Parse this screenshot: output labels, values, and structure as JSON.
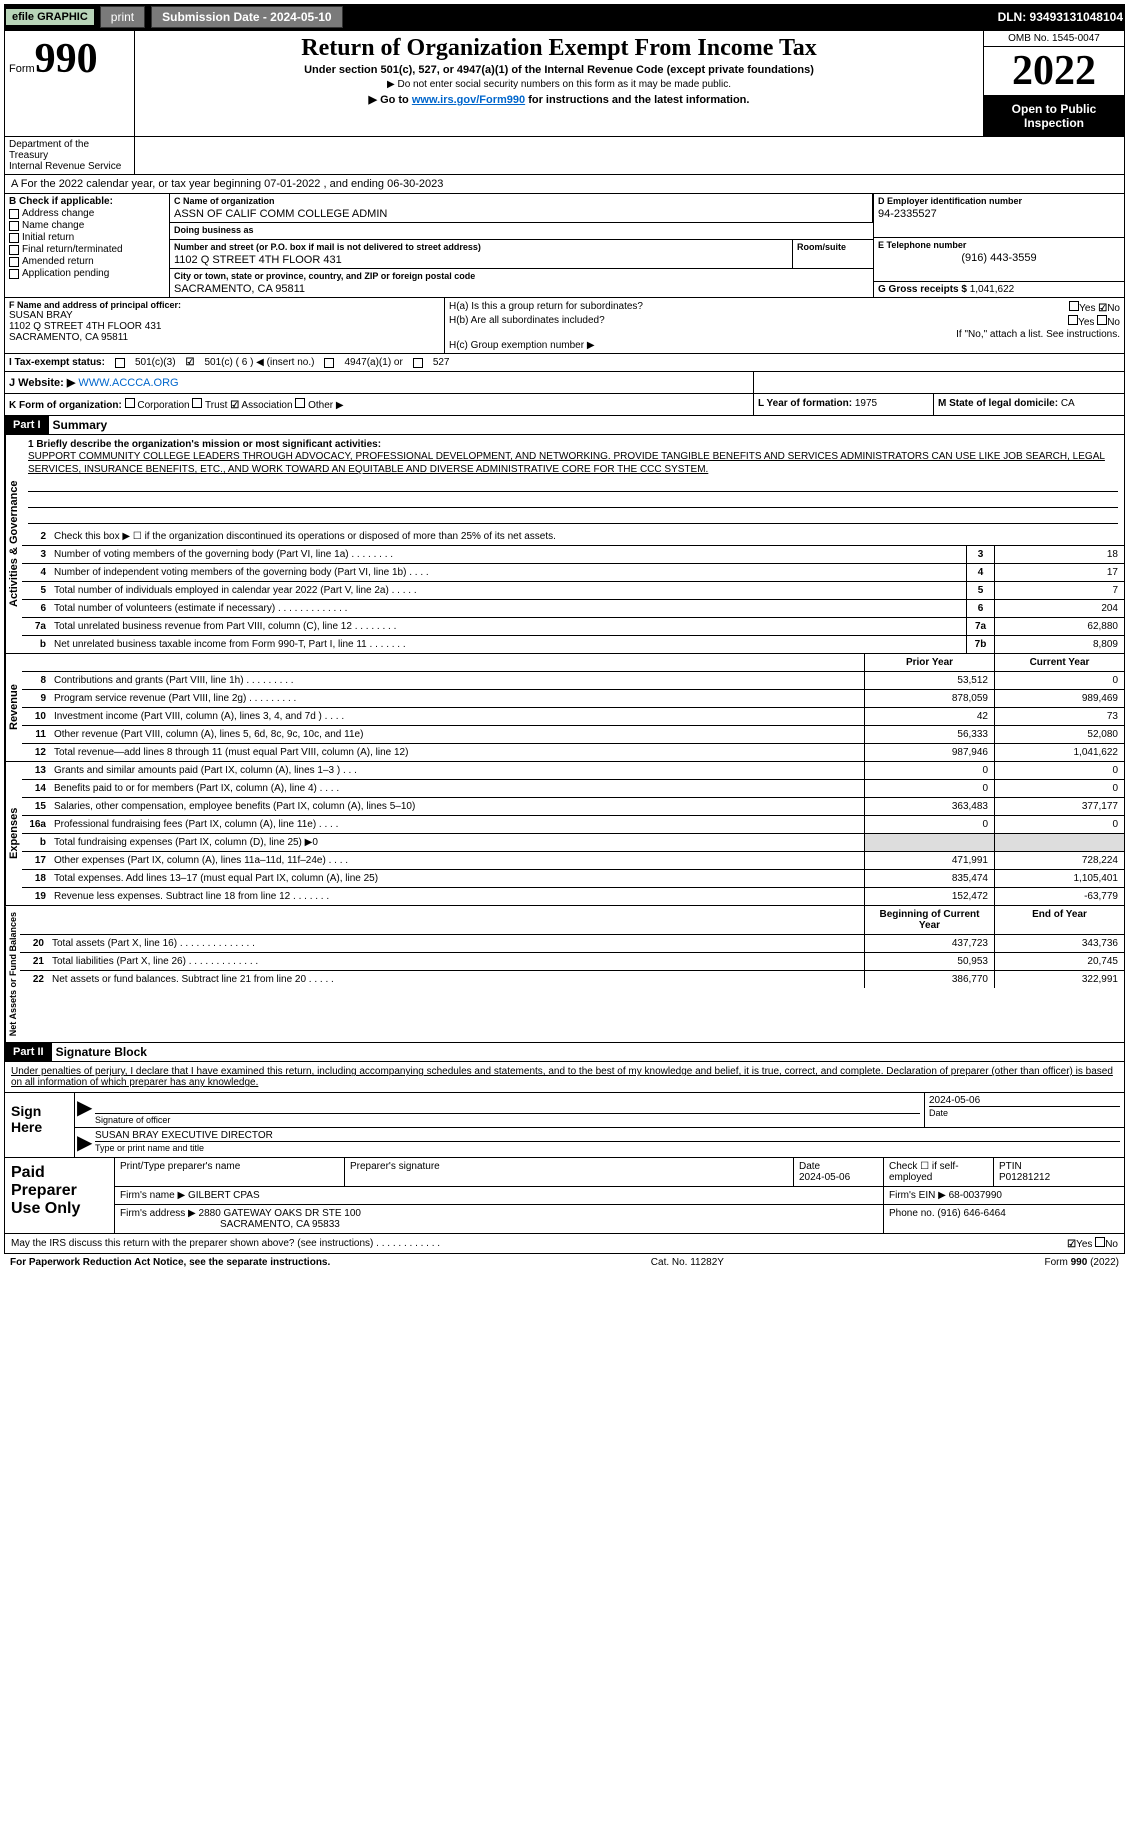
{
  "topbar": {
    "efile": "efile GRAPHIC",
    "print": "print",
    "sub_label": "Submission Date - 2024-05-10",
    "dln": "DLN: 93493131048104"
  },
  "header": {
    "form_label": "Form",
    "form_no": "990",
    "title": "Return of Organization Exempt From Income Tax",
    "subtitle": "Under section 501(c), 527, or 4947(a)(1) of the Internal Revenue Code (except private foundations)",
    "note1": "▶ Do not enter social security numbers on this form as it may be made public.",
    "note2_pre": "▶ Go to ",
    "note2_link": "www.irs.gov/Form990",
    "note2_post": " for instructions and the latest information.",
    "omb": "OMB No. 1545-0047",
    "year": "2022",
    "open": "Open to Public Inspection",
    "dept": "Department of the Treasury",
    "irs": "Internal Revenue Service"
  },
  "line_a": "A For the 2022 calendar year, or tax year beginning 07-01-2022    , and ending 06-30-2023",
  "col_b": {
    "label": "B Check if applicable:",
    "items": [
      "Address change",
      "Name change",
      "Initial return",
      "Final return/terminated",
      "Amended return",
      "Application pending"
    ]
  },
  "col_c": {
    "name_label": "C Name of organization",
    "name": "ASSN OF CALIF COMM COLLEGE ADMIN",
    "dba_label": "Doing business as",
    "dba": "",
    "addr_label": "Number and street (or P.O. box if mail is not delivered to street address)",
    "addr": "1102 Q STREET 4TH FLOOR 431",
    "room_label": "Room/suite",
    "city_label": "City or town, state or province, country, and ZIP or foreign postal code",
    "city": "SACRAMENTO, CA  95811"
  },
  "col_d": {
    "label": "D Employer identification number",
    "ein": "94-2335527",
    "e_label": "E Telephone number",
    "phone": "(916) 443-3559",
    "g_label": "G Gross receipts $",
    "g_val": "1,041,622"
  },
  "col_f": {
    "label": "F  Name and address of principal officer:",
    "name": "SUSAN BRAY",
    "addr1": "1102 Q STREET 4TH FLOOR 431",
    "addr2": "SACRAMENTO, CA  95811"
  },
  "col_h": {
    "ha": "H(a)  Is this a group return for subordinates?",
    "hb": "H(b)  Are all subordinates included?",
    "hb_note": "If \"No,\" attach a list. See instructions.",
    "hc": "H(c)  Group exemption number ▶",
    "yes": "Yes",
    "no": "No"
  },
  "row_i": {
    "label": "I   Tax-exempt status:",
    "o1": "501(c)(3)",
    "o2": "501(c) ( 6 ) ◀ (insert no.)",
    "o3": "4947(a)(1) or",
    "o4": "527"
  },
  "row_j": {
    "label": "J   Website: ▶",
    "url": "WWW.ACCCA.ORG"
  },
  "row_k": {
    "left_label": "K Form of organization:",
    "corp": "Corporation",
    "trust": "Trust",
    "assoc": "Association",
    "other": "Other ▶",
    "l_label": "L Year of formation:",
    "l_val": "1975",
    "m_label": "M State of legal domicile:",
    "m_val": "CA"
  },
  "part1": {
    "label": "Part I",
    "title": "Summary",
    "mission_label": "1  Briefly describe the organization's mission or most significant activities:",
    "mission": "SUPPORT COMMUNITY COLLEGE LEADERS THROUGH ADVOCACY, PROFESSIONAL DEVELOPMENT, AND NETWORKING. PROVIDE TANGIBLE BENEFITS AND SERVICES ADMINISTRATORS CAN USE LIKE JOB SEARCH, LEGAL SERVICES, INSURANCE BENEFITS, ETC., AND WORK TOWARD AN EQUITABLE AND DIVERSE ADMINISTRATIVE CORE FOR THE CCC SYSTEM."
  },
  "side_labels": {
    "gov": "Activities & Governance",
    "rev": "Revenue",
    "exp": "Expenses",
    "net": "Net Assets or Fund Balances"
  },
  "gov_rows": [
    {
      "n": "2",
      "d": "Check this box ▶ ☐  if the organization discontinued its operations or disposed of more than 25% of its net assets."
    },
    {
      "n": "3",
      "d": "Number of voting members of the governing body (Part VI, line 1a)   .    .    .    .    .    .    .    .",
      "b": "3",
      "v": "18"
    },
    {
      "n": "4",
      "d": "Number of independent voting members of the governing body (Part VI, line 1b)   .    .    .    .",
      "b": "4",
      "v": "17"
    },
    {
      "n": "5",
      "d": "Total number of individuals employed in calendar year 2022 (Part V, line 2a)   .    .    .    .    .",
      "b": "5",
      "v": "7"
    },
    {
      "n": "6",
      "d": "Total number of volunteers (estimate if necessary)   .    .    .    .    .    .    .    .    .    .    .    .    .",
      "b": "6",
      "v": "204"
    },
    {
      "n": "7a",
      "d": "Total unrelated business revenue from Part VIII, column (C), line 12   .    .    .    .    .    .    .    .",
      "b": "7a",
      "v": "62,880"
    },
    {
      "n": "  b",
      "d": "Net unrelated business taxable income from Form 990-T, Part I, line 11   .    .    .    .    .    .    .",
      "b": "7b",
      "v": "8,809"
    }
  ],
  "col_hdrs": {
    "prior": "Prior Year",
    "current": "Current Year",
    "boy": "Beginning of Current Year",
    "eoy": "End of Year"
  },
  "rev_rows": [
    {
      "n": "8",
      "d": "Contributions and grants (Part VIII, line 1h)   .    .    .    .    .    .    .    .    .",
      "p": "53,512",
      "c": "0"
    },
    {
      "n": "9",
      "d": "Program service revenue (Part VIII, line 2g)   .    .    .    .    .    .    .    .    .",
      "p": "878,059",
      "c": "989,469"
    },
    {
      "n": "10",
      "d": "Investment income (Part VIII, column (A), lines 3, 4, and 7d )   .    .    .    .",
      "p": "42",
      "c": "73"
    },
    {
      "n": "11",
      "d": "Other revenue (Part VIII, column (A), lines 5, 6d, 8c, 9c, 10c, and 11e)",
      "p": "56,333",
      "c": "52,080"
    },
    {
      "n": "12",
      "d": "Total revenue—add lines 8 through 11 (must equal Part VIII, column (A), line 12)",
      "p": "987,946",
      "c": "1,041,622"
    }
  ],
  "exp_rows": [
    {
      "n": "13",
      "d": "Grants and similar amounts paid (Part IX, column (A), lines 1–3 )   .    .    .",
      "p": "0",
      "c": "0"
    },
    {
      "n": "14",
      "d": "Benefits paid to or for members (Part IX, column (A), line 4)   .    .    .    .",
      "p": "0",
      "c": "0"
    },
    {
      "n": "15",
      "d": "Salaries, other compensation, employee benefits (Part IX, column (A), lines 5–10)",
      "p": "363,483",
      "c": "377,177"
    },
    {
      "n": "16a",
      "d": "Professional fundraising fees (Part IX, column (A), line 11e)   .    .    .    .",
      "p": "0",
      "c": "0"
    },
    {
      "n": "  b",
      "d": "Total fundraising expenses (Part IX, column (D), line 25) ▶0",
      "p": "",
      "c": "",
      "shaded": true
    },
    {
      "n": "17",
      "d": "Other expenses (Part IX, column (A), lines 11a–11d, 11f–24e)   .    .    .    .",
      "p": "471,991",
      "c": "728,224"
    },
    {
      "n": "18",
      "d": "Total expenses. Add lines 13–17 (must equal Part IX, column (A), line 25)",
      "p": "835,474",
      "c": "1,105,401"
    },
    {
      "n": "19",
      "d": "Revenue less expenses. Subtract line 18 from line 12   .    .    .    .    .    .    .",
      "p": "152,472",
      "c": "-63,779"
    }
  ],
  "net_rows": [
    {
      "n": "20",
      "d": "Total assets (Part X, line 16)   .    .    .    .    .    .    .    .    .    .    .    .    .    .",
      "p": "437,723",
      "c": "343,736"
    },
    {
      "n": "21",
      "d": "Total liabilities (Part X, line 26)   .    .    .    .    .    .    .    .    .    .    .    .    .",
      "p": "50,953",
      "c": "20,745"
    },
    {
      "n": "22",
      "d": "Net assets or fund balances. Subtract line 21 from line 20   .    .    .    .    .",
      "p": "386,770",
      "c": "322,991"
    }
  ],
  "part2": {
    "label": "Part II",
    "title": "Signature Block"
  },
  "sig": {
    "intro": "Under penalties of perjury, I declare that I have examined this return, including accompanying schedules and statements, and to the best of my knowledge and belief, it is true, correct, and complete. Declaration of preparer (other than officer) is based on all information of which preparer has any knowledge.",
    "here": "Sign Here",
    "sig_label": "Signature of officer",
    "date_label": "Date",
    "date": "2024-05-06",
    "name": "SUSAN BRAY EXECUTIVE DIRECTOR",
    "name_label": "Type or print name and title"
  },
  "prep": {
    "label": "Paid Preparer Use Only",
    "h1": "Print/Type preparer's name",
    "h2": "Preparer's signature",
    "h3": "Date",
    "h4": "Check ☐ if self-employed",
    "h5": "PTIN",
    "date": "2024-05-06",
    "ptin": "P01281212",
    "firm_label": "Firm's name    ▶",
    "firm": "GILBERT CPAS",
    "ein_label": "Firm's EIN ▶",
    "ein": "68-0037990",
    "addr_label": "Firm's address ▶",
    "addr1": "2880 GATEWAY OAKS DR STE 100",
    "addr2": "SACRAMENTO, CA  95833",
    "phone_label": "Phone no.",
    "phone": "(916) 646-6464"
  },
  "footer": {
    "discuss": "May the IRS discuss this return with the preparer shown above? (see instructions)   .    .    .    .    .    .    .    .    .    .    .    .",
    "yes": "Yes",
    "no": "No",
    "pra": "For Paperwork Reduction Act Notice, see the separate instructions.",
    "cat": "Cat. No. 11282Y",
    "form": "Form 990 (2022)"
  }
}
